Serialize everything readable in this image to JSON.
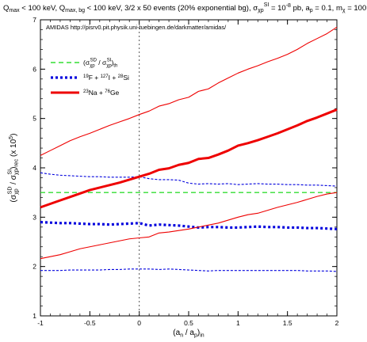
{
  "chart_data": {
    "type": "line",
    "title": "Q_max < 100 keV, Q_max,bg < 100 keV, 3/2 x 50 events (20% exponential bg), σ_χp^SI = 10^-8 pb, a_p = 0.1, m_χ = 100 GeV",
    "title_parts": {
      "p1": "Q",
      "p1sub": "max",
      "p2": " < 100 keV, Q",
      "p2sub": "max, bg",
      "p3": " < 100 keV, 3/2 x 50 events (20% exponential bg), σ",
      "p3sub": "χp",
      "p3sup": "SI",
      "p4": " = 10",
      "p4sup": "-8",
      "p5": " pb, a",
      "p5sub": "p",
      "p6": " = 0.1, m",
      "p6sub": "χ",
      "p7": " = 100 GeV"
    },
    "annotation": "AMIDAS   http://pisrv0.pit.physik.uni-tuebingen.de/darkmatter/amidas/",
    "xlabel": {
      "a": "(a",
      "a_sub": "n",
      "b": " / a",
      "b_sub": "p",
      "c": ")",
      "c_sub": "in"
    },
    "ylabel": {
      "a": "(σ",
      "a_sub": "χp",
      "a_sup": "SD",
      "b": " / σ",
      "b_sub": "χp",
      "b_sup": "SI",
      "c": ")",
      "c_sub": "rec",
      "d": " (x 10",
      "d_sup": "5",
      "e": ")"
    },
    "xlim": [
      -1,
      2
    ],
    "ylim": [
      1,
      7
    ],
    "xticks": [
      "-1",
      "-0.5",
      "0",
      "0.5",
      "1",
      "1.5",
      "2"
    ],
    "xtick_values": [
      -1,
      -0.5,
      0,
      0.5,
      1,
      1.5,
      2
    ],
    "yticks": [
      "1",
      "2",
      "3",
      "4",
      "5",
      "6",
      "7"
    ],
    "ytick_values": [
      1,
      2,
      3,
      4,
      5,
      6,
      7
    ],
    "vline_x": 0,
    "legend_position": "top-left",
    "legend": [
      {
        "a": "(σ",
        "a_sub": "χp",
        "a_sup": "SD",
        "b": " / σ",
        "b_sub": "χp",
        "b_sup": "SI",
        "c": ")",
        "c_sub": "th"
      },
      {
        "a": "F + ",
        "a_pre": "19",
        "b": "I + ",
        "b_pre": "127",
        "c": "Si",
        "c_pre": "28"
      },
      {
        "a": "Na + ",
        "a_pre": "23",
        "b": "Ge",
        "b_pre": "76"
      }
    ],
    "x": [
      -1,
      -0.9,
      -0.8,
      -0.7,
      -0.6,
      -0.5,
      -0.4,
      -0.3,
      -0.2,
      -0.1,
      0,
      0.1,
      0.2,
      0.3,
      0.4,
      0.5,
      0.6,
      0.7,
      0.8,
      0.9,
      1.0,
      1.1,
      1.2,
      1.3,
      1.4,
      1.5,
      1.6,
      1.7,
      1.8,
      1.9,
      2.0
    ],
    "series": [
      {
        "style": "green-dashed",
        "values": [
          3.5,
          3.5,
          3.5,
          3.5,
          3.5,
          3.5,
          3.5,
          3.5,
          3.5,
          3.5,
          3.5,
          3.5,
          3.5,
          3.5,
          3.5,
          3.5,
          3.5,
          3.5,
          3.5,
          3.5,
          3.5,
          3.5,
          3.5,
          3.5,
          3.5,
          3.5,
          3.5,
          3.5,
          3.5,
          3.5,
          3.5
        ]
      },
      {
        "style": "blue-dotted-thick",
        "values": [
          2.9,
          2.89,
          2.88,
          2.88,
          2.87,
          2.86,
          2.86,
          2.85,
          2.86,
          2.87,
          2.88,
          2.83,
          2.85,
          2.84,
          2.83,
          2.81,
          2.79,
          2.8,
          2.8,
          2.79,
          2.79,
          2.8,
          2.81,
          2.8,
          2.8,
          2.79,
          2.79,
          2.78,
          2.78,
          2.77,
          2.76
        ]
      },
      {
        "style": "blue-dotted-thin-upper",
        "values": [
          3.9,
          3.87,
          3.85,
          3.84,
          3.83,
          3.82,
          3.82,
          3.81,
          3.81,
          3.81,
          3.82,
          3.78,
          3.76,
          3.76,
          3.75,
          3.69,
          3.67,
          3.68,
          3.67,
          3.68,
          3.66,
          3.67,
          3.68,
          3.67,
          3.67,
          3.66,
          3.66,
          3.65,
          3.65,
          3.64,
          3.63
        ]
      },
      {
        "style": "blue-dotted-thin-lower",
        "values": [
          1.92,
          1.92,
          1.92,
          1.93,
          1.93,
          1.93,
          1.93,
          1.94,
          1.94,
          1.95,
          1.95,
          1.95,
          1.94,
          1.95,
          1.94,
          1.93,
          1.92,
          1.91,
          1.92,
          1.92,
          1.92,
          1.92,
          1.92,
          1.92,
          1.92,
          1.92,
          1.92,
          1.91,
          1.91,
          1.91,
          1.9
        ]
      },
      {
        "style": "red-solid-thick",
        "values": [
          3.2,
          3.27,
          3.34,
          3.41,
          3.48,
          3.55,
          3.6,
          3.65,
          3.7,
          3.76,
          3.82,
          3.88,
          3.96,
          3.99,
          4.06,
          4.1,
          4.18,
          4.2,
          4.27,
          4.35,
          4.45,
          4.5,
          4.56,
          4.63,
          4.7,
          4.78,
          4.86,
          4.95,
          5.02,
          5.1,
          5.18
        ]
      },
      {
        "style": "red-solid-thin-upper",
        "values": [
          4.25,
          4.35,
          4.45,
          4.55,
          4.63,
          4.7,
          4.78,
          4.86,
          4.93,
          5.0,
          5.08,
          5.15,
          5.25,
          5.3,
          5.38,
          5.43,
          5.55,
          5.6,
          5.72,
          5.82,
          5.92,
          6.0,
          6.07,
          6.15,
          6.22,
          6.3,
          6.4,
          6.52,
          6.62,
          6.72,
          6.85
        ]
      },
      {
        "style": "red-solid-thin-lower",
        "values": [
          2.16,
          2.2,
          2.24,
          2.3,
          2.36,
          2.4,
          2.44,
          2.48,
          2.52,
          2.56,
          2.58,
          2.6,
          2.68,
          2.7,
          2.73,
          2.76,
          2.8,
          2.84,
          2.88,
          2.94,
          3.0,
          3.05,
          3.08,
          3.14,
          3.2,
          3.25,
          3.3,
          3.36,
          3.42,
          3.47,
          3.5
        ]
      }
    ],
    "colors": {
      "green": "#33dd33",
      "blue": "#0000dd",
      "red": "#ee0000",
      "frame": "#000000",
      "vline": "#555555"
    }
  }
}
